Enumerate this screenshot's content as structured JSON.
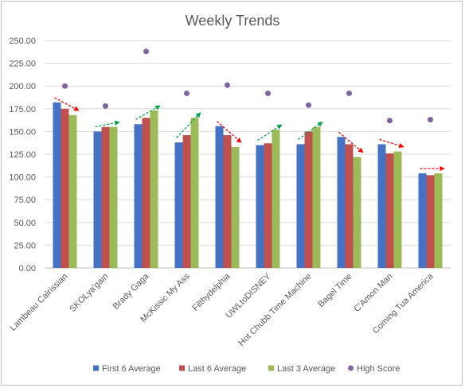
{
  "chart_data": {
    "type": "bar",
    "title": "Weekly Trends",
    "categories": [
      "Lambeau Calrissian",
      "SKOLya'gain",
      "Brady Gaga",
      "McKissic My Ass",
      "Filthydelphia",
      "UWLtoDISNEY",
      "Hot Chubb Time Machine",
      "Bagel Time",
      "C'Amon Man",
      "Coming Tua America"
    ],
    "series": [
      {
        "name": "First 6 Average",
        "type": "bar",
        "color": "#4472c4",
        "values": [
          182,
          150,
          158,
          138,
          156,
          135,
          136,
          144,
          136,
          104
        ]
      },
      {
        "name": "Last 6 Average",
        "type": "bar",
        "color": "#c0504d",
        "values": [
          175,
          155,
          165,
          146,
          146,
          137,
          150,
          136,
          126,
          102
        ]
      },
      {
        "name": "Last 3 Average",
        "type": "bar",
        "color": "#9bbb59",
        "values": [
          168,
          155,
          173,
          165,
          133,
          152,
          155,
          122,
          128,
          104
        ]
      },
      {
        "name": "High Score",
        "type": "scatter",
        "color": "#8064a2",
        "values": [
          200,
          178,
          238,
          192,
          201,
          192,
          179,
          192,
          162,
          163
        ]
      }
    ],
    "trend_arrows": {
      "up_color": "#00a651",
      "down_color": "#ff0000",
      "directions": [
        "down",
        "up",
        "up",
        "up",
        "down",
        "up",
        "up",
        "down",
        "down",
        "down"
      ]
    },
    "ylim": [
      0,
      250
    ],
    "yticks": [
      "0.00",
      "25.00",
      "50.00",
      "75.00",
      "100.00",
      "125.00",
      "150.00",
      "175.00",
      "200.00",
      "225.00",
      "250.00"
    ],
    "grid": true,
    "legend_position": "bottom"
  }
}
